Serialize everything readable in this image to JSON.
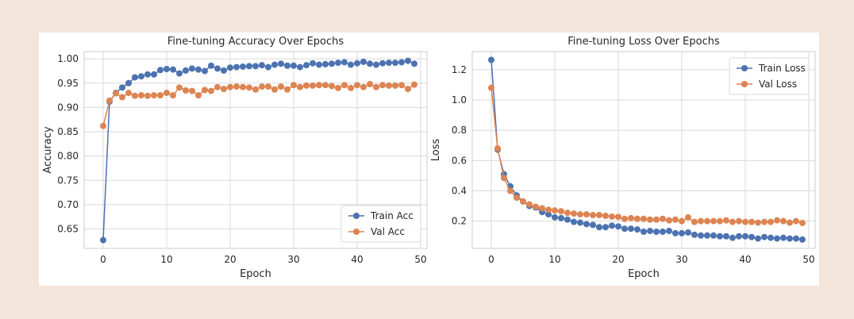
{
  "chart_data": [
    {
      "type": "line",
      "title": "Fine-tuning Accuracy Over Epochs",
      "xlabel": "Epoch",
      "ylabel": "Accuracy",
      "xlim": [
        -3,
        51
      ],
      "ylim": [
        0.61,
        1.015
      ],
      "xticks": [
        0,
        10,
        20,
        30,
        40,
        50
      ],
      "yticks": [
        0.65,
        0.7,
        0.75,
        0.8,
        0.85,
        0.9,
        0.95,
        1.0
      ],
      "ytick_labels": [
        "0.65",
        "0.70",
        "0.75",
        "0.80",
        "0.85",
        "0.90",
        "0.95",
        "1.00"
      ],
      "grid": true,
      "legend_position": "bottom-right",
      "x": [
        0,
        1,
        2,
        3,
        4,
        5,
        6,
        7,
        8,
        9,
        10,
        11,
        12,
        13,
        14,
        15,
        16,
        17,
        18,
        19,
        20,
        21,
        22,
        23,
        24,
        25,
        26,
        27,
        28,
        29,
        30,
        31,
        32,
        33,
        34,
        35,
        36,
        37,
        38,
        39,
        40,
        41,
        42,
        43,
        44,
        45,
        46,
        47,
        48,
        49
      ],
      "series": [
        {
          "name": "Train Acc",
          "color": "#4c72b0",
          "values": [
            0.627,
            0.912,
            0.93,
            0.941,
            0.95,
            0.962,
            0.964,
            0.968,
            0.968,
            0.977,
            0.979,
            0.978,
            0.97,
            0.976,
            0.98,
            0.978,
            0.975,
            0.986,
            0.98,
            0.976,
            0.982,
            0.983,
            0.984,
            0.985,
            0.985,
            0.987,
            0.983,
            0.988,
            0.99,
            0.986,
            0.986,
            0.983,
            0.987,
            0.991,
            0.988,
            0.989,
            0.99,
            0.992,
            0.993,
            0.988,
            0.991,
            0.994,
            0.99,
            0.988,
            0.991,
            0.992,
            0.992,
            0.993,
            0.996,
            0.99
          ]
        },
        {
          "name": "Val Acc",
          "color": "#dd8452",
          "values": [
            0.862,
            0.914,
            0.929,
            0.921,
            0.93,
            0.924,
            0.925,
            0.924,
            0.925,
            0.925,
            0.93,
            0.925,
            0.941,
            0.935,
            0.934,
            0.925,
            0.936,
            0.934,
            0.942,
            0.938,
            0.942,
            0.943,
            0.942,
            0.941,
            0.937,
            0.943,
            0.943,
            0.937,
            0.943,
            0.937,
            0.946,
            0.942,
            0.945,
            0.945,
            0.946,
            0.946,
            0.944,
            0.94,
            0.946,
            0.94,
            0.946,
            0.942,
            0.948,
            0.942,
            0.946,
            0.945,
            0.945,
            0.946,
            0.938,
            0.947
          ]
        }
      ]
    },
    {
      "type": "line",
      "title": "Fine-tuning Loss Over Epochs",
      "xlabel": "Epoch",
      "ylabel": "Loss",
      "xlim": [
        -3,
        51
      ],
      "ylim": [
        0.02,
        1.32
      ],
      "xticks": [
        0,
        10,
        20,
        30,
        40,
        50
      ],
      "yticks": [
        0.2,
        0.4,
        0.6,
        0.8,
        1.0,
        1.2
      ],
      "ytick_labels": [
        "0.2",
        "0.4",
        "0.6",
        "0.8",
        "1.0",
        "1.2"
      ],
      "grid": true,
      "legend_position": "top-right",
      "x": [
        0,
        1,
        2,
        3,
        4,
        5,
        6,
        7,
        8,
        9,
        10,
        11,
        12,
        13,
        14,
        15,
        16,
        17,
        18,
        19,
        20,
        21,
        22,
        23,
        24,
        25,
        26,
        27,
        28,
        29,
        30,
        31,
        32,
        33,
        34,
        35,
        36,
        37,
        38,
        39,
        40,
        41,
        42,
        43,
        44,
        45,
        46,
        47,
        48,
        49
      ],
      "series": [
        {
          "name": "Train Loss",
          "color": "#4c72b0",
          "values": [
            1.265,
            0.672,
            0.51,
            0.43,
            0.37,
            0.33,
            0.3,
            0.29,
            0.26,
            0.245,
            0.225,
            0.22,
            0.21,
            0.195,
            0.19,
            0.18,
            0.175,
            0.16,
            0.16,
            0.17,
            0.165,
            0.15,
            0.15,
            0.145,
            0.13,
            0.135,
            0.13,
            0.13,
            0.135,
            0.12,
            0.12,
            0.125,
            0.11,
            0.105,
            0.105,
            0.105,
            0.1,
            0.1,
            0.09,
            0.1,
            0.1,
            0.095,
            0.085,
            0.095,
            0.09,
            0.085,
            0.09,
            0.085,
            0.085,
            0.078
          ]
        },
        {
          "name": "Val Loss",
          "color": "#dd8452",
          "values": [
            1.08,
            0.68,
            0.485,
            0.4,
            0.355,
            0.33,
            0.31,
            0.295,
            0.285,
            0.275,
            0.27,
            0.265,
            0.255,
            0.25,
            0.245,
            0.245,
            0.24,
            0.24,
            0.235,
            0.23,
            0.228,
            0.215,
            0.22,
            0.215,
            0.215,
            0.21,
            0.21,
            0.215,
            0.205,
            0.21,
            0.2,
            0.225,
            0.195,
            0.2,
            0.2,
            0.2,
            0.2,
            0.205,
            0.195,
            0.2,
            0.195,
            0.195,
            0.19,
            0.195,
            0.195,
            0.205,
            0.2,
            0.19,
            0.2,
            0.188
          ]
        }
      ]
    }
  ]
}
